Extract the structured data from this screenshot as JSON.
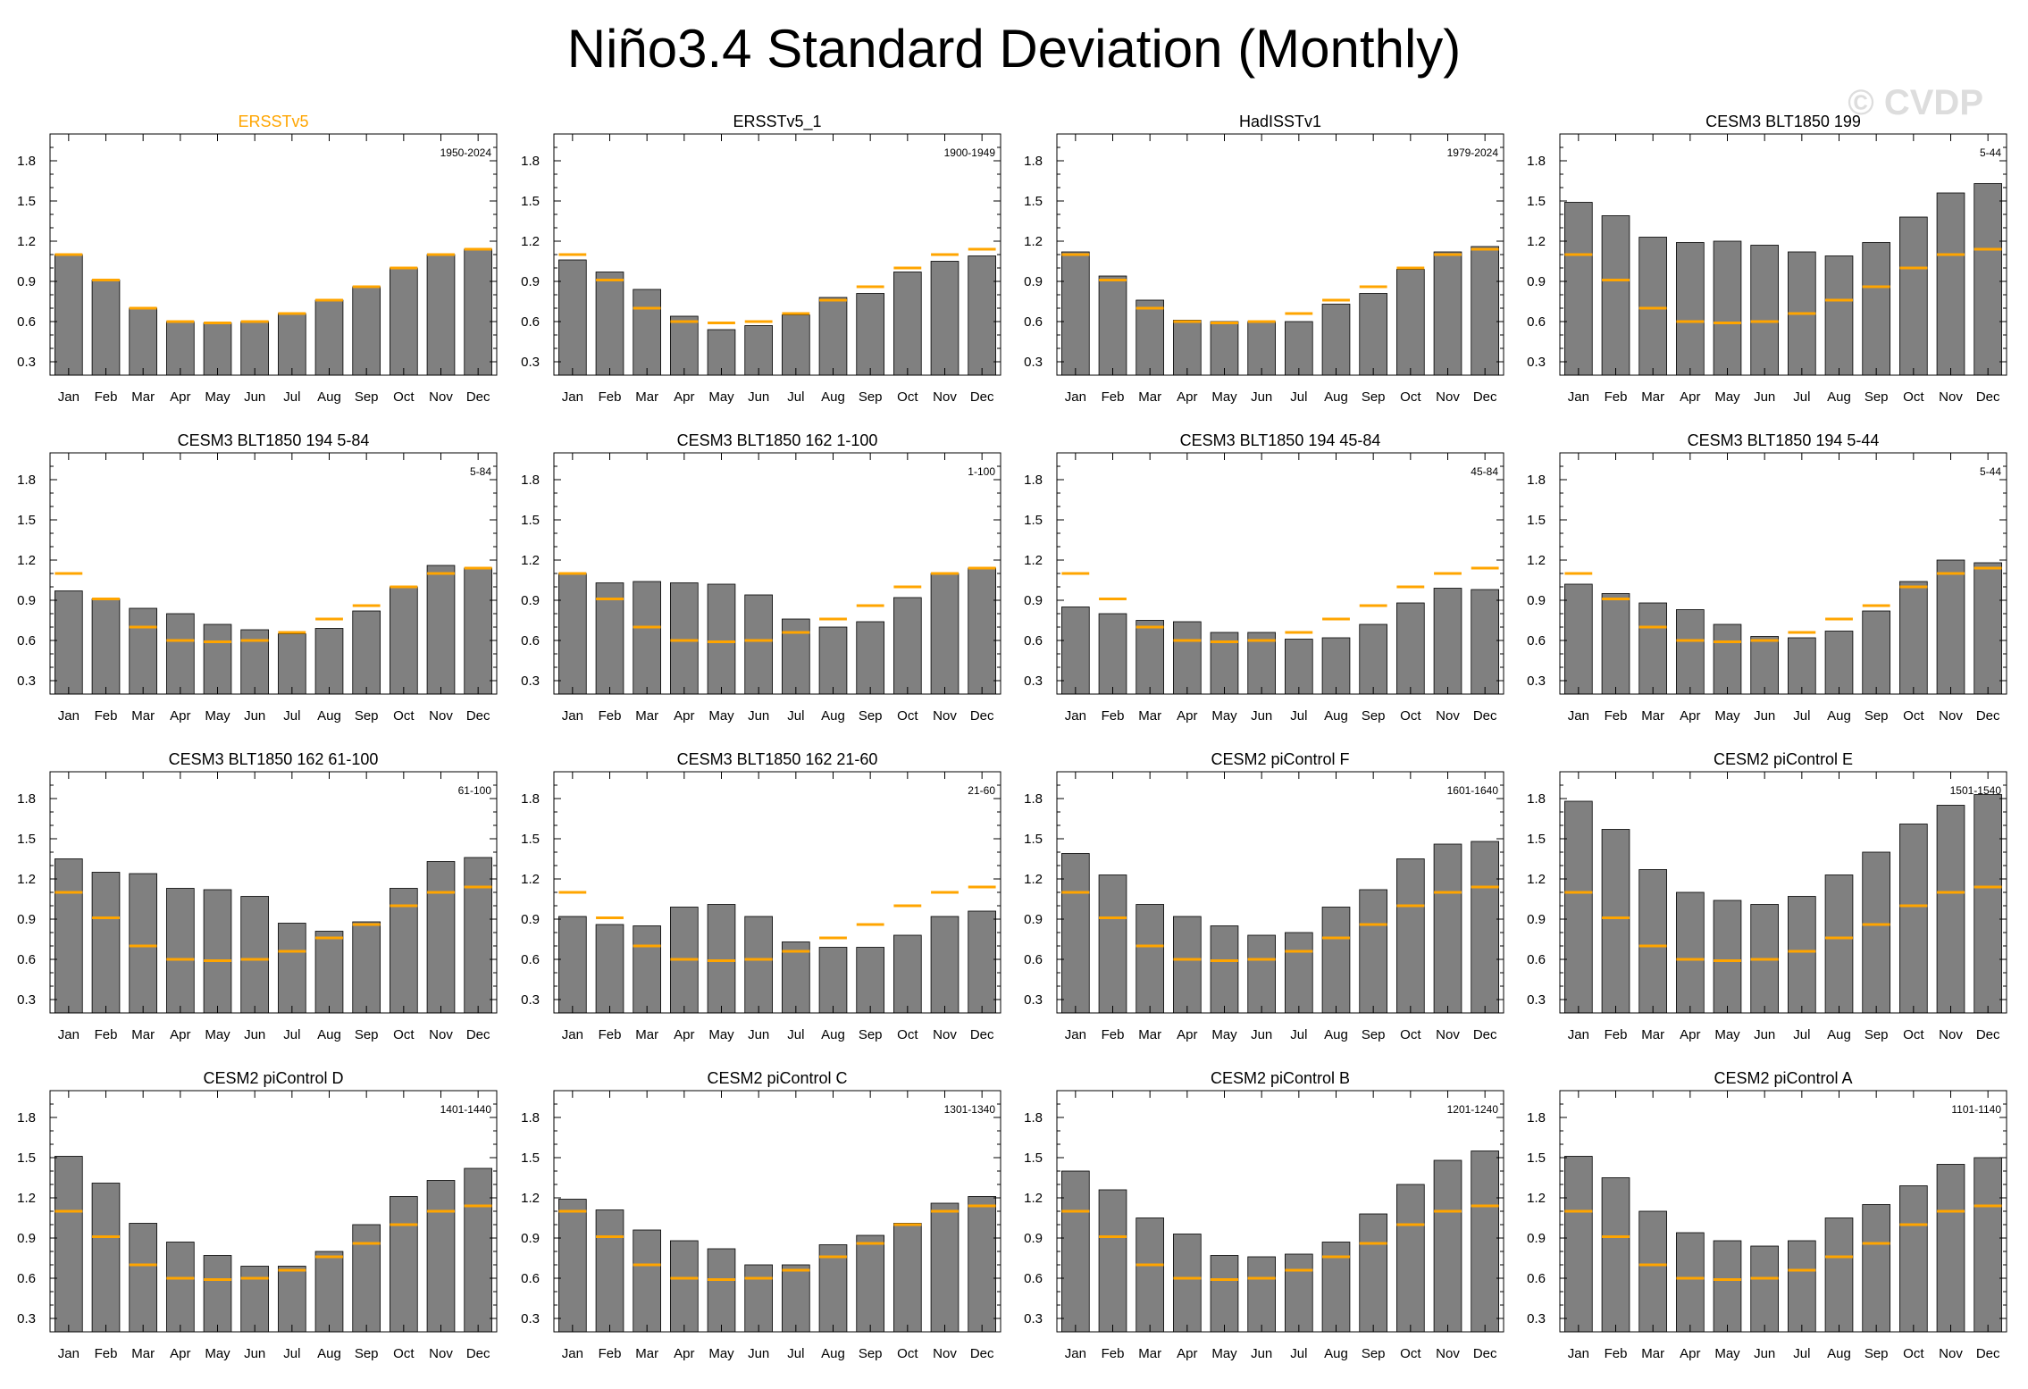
{
  "title": "Niño3.4 Standard Deviation (Monthly)",
  "watermark": "© CVDP",
  "colors": {
    "bar": "#808080",
    "reference": "#ffa500",
    "reference_title": "#ffa500"
  },
  "chart_data": {
    "type": "bar",
    "categories": [
      "Jan",
      "Feb",
      "Mar",
      "Apr",
      "May",
      "Jun",
      "Jul",
      "Aug",
      "Sep",
      "Oct",
      "Nov",
      "Dec"
    ],
    "ylim": [
      0.2,
      2.0
    ],
    "yticks": [
      0.3,
      0.6,
      0.9,
      1.2,
      1.5,
      1.8
    ],
    "ytick_labels": [
      "0.3",
      "0.6",
      "0.9",
      "1.2",
      "1.5",
      "1.8"
    ],
    "reference": {
      "name": "ERSSTv5",
      "values": [
        1.1,
        0.91,
        0.7,
        0.6,
        0.59,
        0.6,
        0.66,
        0.76,
        0.86,
        1.0,
        1.1,
        1.14
      ]
    },
    "panels": [
      {
        "title": "ERSSTv5",
        "period": "1950-2024",
        "is_reference": true,
        "values": [
          1.1,
          0.91,
          0.7,
          0.6,
          0.59,
          0.6,
          0.66,
          0.76,
          0.86,
          1.0,
          1.1,
          1.14
        ]
      },
      {
        "title": "ERSSTv5_1",
        "period": "1900-1949",
        "is_reference": false,
        "values": [
          1.06,
          0.97,
          0.84,
          0.64,
          0.54,
          0.57,
          0.65,
          0.78,
          0.81,
          0.97,
          1.05,
          1.09
        ]
      },
      {
        "title": "HadISSTv1",
        "period": "1979-2024",
        "is_reference": false,
        "values": [
          1.12,
          0.94,
          0.76,
          0.61,
          0.6,
          0.6,
          0.6,
          0.73,
          0.81,
          0.99,
          1.12,
          1.16
        ]
      },
      {
        "title": "CESM3 BLT1850 199",
        "period": "5-44",
        "is_reference": false,
        "values": [
          1.49,
          1.39,
          1.23,
          1.19,
          1.2,
          1.17,
          1.12,
          1.09,
          1.19,
          1.38,
          1.56,
          1.63
        ]
      },
      {
        "title": "CESM3 BLT1850 194 5-84",
        "period": "5-84",
        "is_reference": false,
        "values": [
          0.97,
          0.91,
          0.84,
          0.8,
          0.72,
          0.68,
          0.65,
          0.69,
          0.82,
          1.0,
          1.16,
          1.14
        ]
      },
      {
        "title": "CESM3 BLT1850 162 1-100",
        "period": "1-100",
        "is_reference": false,
        "values": [
          1.1,
          1.03,
          1.04,
          1.03,
          1.02,
          0.94,
          0.76,
          0.7,
          0.74,
          0.92,
          1.1,
          1.14
        ]
      },
      {
        "title": "CESM3 BLT1850 194 45-84",
        "period": "45-84",
        "is_reference": false,
        "values": [
          0.85,
          0.8,
          0.75,
          0.74,
          0.66,
          0.66,
          0.61,
          0.62,
          0.72,
          0.88,
          0.99,
          0.98
        ]
      },
      {
        "title": "CESM3 BLT1850 194 5-44",
        "period": "5-44",
        "is_reference": false,
        "values": [
          1.02,
          0.95,
          0.88,
          0.83,
          0.72,
          0.63,
          0.62,
          0.67,
          0.82,
          1.04,
          1.2,
          1.18
        ]
      },
      {
        "title": "CESM3 BLT1850 162 61-100",
        "period": "61-100",
        "is_reference": false,
        "values": [
          1.35,
          1.25,
          1.24,
          1.13,
          1.12,
          1.07,
          0.87,
          0.81,
          0.88,
          1.13,
          1.33,
          1.36
        ]
      },
      {
        "title": "CESM3 BLT1850 162 21-60",
        "period": "21-60",
        "is_reference": false,
        "values": [
          0.92,
          0.86,
          0.85,
          0.99,
          1.01,
          0.92,
          0.73,
          0.69,
          0.69,
          0.78,
          0.92,
          0.96
        ]
      },
      {
        "title": "CESM2 piControl F",
        "period": "1601-1640",
        "is_reference": false,
        "values": [
          1.39,
          1.23,
          1.01,
          0.92,
          0.85,
          0.78,
          0.8,
          0.99,
          1.12,
          1.35,
          1.46,
          1.48
        ]
      },
      {
        "title": "CESM2 piControl E",
        "period": "1501-1540",
        "is_reference": false,
        "values": [
          1.78,
          1.57,
          1.27,
          1.1,
          1.04,
          1.01,
          1.07,
          1.23,
          1.4,
          1.61,
          1.75,
          1.83
        ]
      },
      {
        "title": "CESM2 piControl D",
        "period": "1401-1440",
        "is_reference": false,
        "values": [
          1.51,
          1.31,
          1.01,
          0.87,
          0.77,
          0.69,
          0.69,
          0.8,
          1.0,
          1.21,
          1.33,
          1.42
        ]
      },
      {
        "title": "CESM2 piControl C",
        "period": "1301-1340",
        "is_reference": false,
        "values": [
          1.19,
          1.11,
          0.96,
          0.88,
          0.82,
          0.7,
          0.7,
          0.85,
          0.92,
          1.01,
          1.16,
          1.21
        ]
      },
      {
        "title": "CESM2 piControl B",
        "period": "1201-1240",
        "is_reference": false,
        "values": [
          1.4,
          1.26,
          1.05,
          0.93,
          0.77,
          0.76,
          0.78,
          0.87,
          1.08,
          1.3,
          1.48,
          1.55
        ]
      },
      {
        "title": "CESM2 piControl A",
        "period": "1101-1140",
        "is_reference": false,
        "values": [
          1.51,
          1.35,
          1.1,
          0.94,
          0.88,
          0.84,
          0.88,
          1.05,
          1.15,
          1.29,
          1.45,
          1.5
        ]
      }
    ]
  }
}
